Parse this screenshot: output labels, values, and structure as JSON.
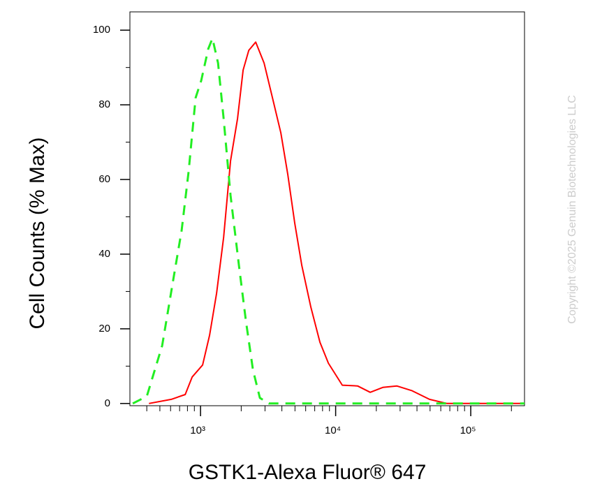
{
  "chart_data": {
    "type": "line",
    "xlabel": "GSTK1-Alexa Fluor® 647",
    "ylabel": "Cell Counts (% Max)",
    "watermark": "Copyright ©2025 Genuin Biotechnologies LLC",
    "xscale": "log",
    "xlim": [
      300,
      250000
    ],
    "ylim": [
      -0.6,
      104.9
    ],
    "xticks": [
      {
        "value": 1000,
        "label": "10³"
      },
      {
        "value": 10000,
        "label": "10⁴"
      },
      {
        "value": 100000,
        "label": "10⁵"
      }
    ],
    "xminorticks": [
      400,
      500,
      600,
      700,
      800,
      900,
      2000,
      3000,
      4000,
      5000,
      6000,
      7000,
      8000,
      9000,
      20000,
      30000,
      40000,
      50000,
      60000,
      70000,
      80000,
      90000,
      200000
    ],
    "yticks": [
      0,
      20,
      40,
      60,
      80,
      100
    ],
    "yminorticks": [
      10,
      30,
      50,
      70,
      90
    ],
    "series": [
      {
        "color": "#ff0000",
        "linestyle": "solid",
        "x": [
          415,
          607,
          770,
          867,
          1036,
          1167,
          1314,
          1482,
          1668,
          1879,
          2066,
          2274,
          2560,
          2952,
          3405,
          3929,
          4424,
          4984,
          5614,
          6557,
          7656,
          8834,
          11200,
          14540,
          18020,
          22340,
          28330,
          36810,
          49550,
          66680,
          250000
        ],
        "values": [
          0,
          1.1,
          2.4,
          7.1,
          10.3,
          18.3,
          29.5,
          44.5,
          65,
          76.3,
          89.3,
          94.6,
          96.8,
          91.2,
          81.9,
          72.5,
          61.3,
          48.2,
          37,
          25.8,
          16.4,
          10.8,
          4.9,
          4.7,
          3,
          4.3,
          4.7,
          3.4,
          1.1,
          0,
          0
        ]
      },
      {
        "color": "#22ee22",
        "linestyle": "dashed",
        "x": [
          315,
          400,
          520,
          629,
          725,
          816,
          920,
          1012,
          1140,
          1225,
          1347,
          1482,
          1668,
          1923,
          2167,
          2442,
          2749,
          3207,
          250000
        ],
        "values": [
          0,
          1.9,
          15.5,
          33.3,
          46.4,
          62.2,
          81.9,
          86.5,
          95,
          97.8,
          91.2,
          76.3,
          55.7,
          37,
          22.1,
          9,
          1.5,
          0,
          0
        ]
      }
    ]
  }
}
